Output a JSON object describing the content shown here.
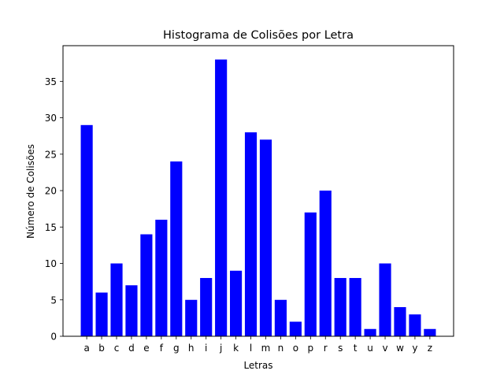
{
  "chart_data": {
    "type": "bar",
    "title": "Histograma de Colisões por Letra",
    "xlabel": "Letras",
    "ylabel": "Número de Colisões",
    "categories": [
      "a",
      "b",
      "c",
      "d",
      "e",
      "f",
      "g",
      "h",
      "i",
      "j",
      "k",
      "l",
      "m",
      "n",
      "o",
      "p",
      "r",
      "s",
      "t",
      "u",
      "v",
      "w",
      "y",
      "z"
    ],
    "values": [
      29,
      6,
      10,
      7,
      14,
      16,
      24,
      5,
      8,
      38,
      9,
      28,
      27,
      5,
      2,
      17,
      20,
      8,
      8,
      1,
      10,
      4,
      3,
      1
    ],
    "ylim": [
      0,
      39.9
    ],
    "yticks": [
      0,
      5,
      10,
      15,
      20,
      25,
      30,
      35
    ],
    "grid": false,
    "legend": "none",
    "bar_color": "#0000ff"
  }
}
